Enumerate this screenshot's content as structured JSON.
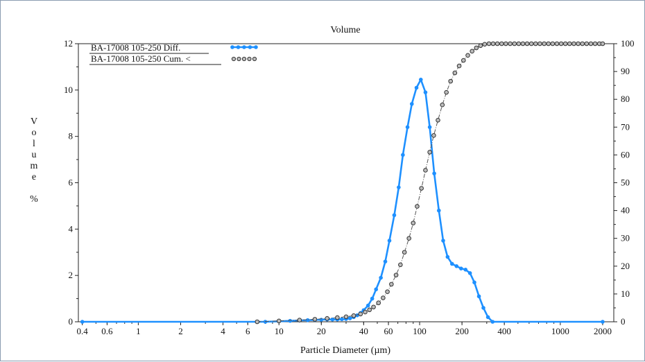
{
  "chart_data": {
    "type": "line",
    "title": "Volume",
    "xlabel": "Particle Diameter (µm)",
    "ylabel_left_chars": [
      "V",
      "o",
      "l",
      "u",
      "m",
      "e",
      "",
      "%"
    ],
    "x_scale": "log",
    "xlim": [
      0.375,
      2400
    ],
    "ylim_left": [
      0,
      12
    ],
    "ylim_right": [
      0,
      100
    ],
    "x_ticks": [
      0.4,
      0.6,
      1,
      2,
      4,
      6,
      10,
      20,
      40,
      60,
      100,
      200,
      400,
      1000,
      2000
    ],
    "x_tick_labels": [
      "0.4",
      "0.6",
      "1",
      "2",
      "4",
      "6",
      "10",
      "20",
      "40",
      "60",
      "100",
      "200",
      "400",
      "1000",
      "2000"
    ],
    "y_left_ticks": [
      0,
      2,
      4,
      6,
      8,
      10,
      12
    ],
    "y_left_tick_labels": [
      "0",
      "2",
      "4",
      "6",
      "8",
      "10",
      "12"
    ],
    "y_right_ticks": [
      0,
      10,
      20,
      30,
      40,
      50,
      60,
      70,
      80,
      90,
      100
    ],
    "y_right_tick_labels": [
      "0",
      "10",
      "20",
      "30",
      "40",
      "50",
      "60",
      "70",
      "80",
      "90",
      "100"
    ],
    "legend_position": "top-left",
    "series": [
      {
        "name": "BA-17008 105-250 Diff.",
        "axis": "left",
        "color": "#1e90ff",
        "style": "solid-filled-markers",
        "x": [
          0.4,
          8,
          10,
          12,
          14,
          16,
          18,
          20,
          22,
          24,
          26,
          28,
          30,
          32,
          34,
          36,
          38,
          40,
          43,
          46,
          49,
          53,
          57,
          61,
          66,
          71,
          76,
          82,
          88,
          95,
          102,
          110,
          118,
          127,
          137,
          147,
          158,
          170,
          183,
          197,
          212,
          228,
          245,
          264,
          284,
          306,
          330,
          2000
        ],
        "y": [
          0,
          0,
          0.02,
          0.04,
          0.06,
          0.07,
          0.08,
          0.09,
          0.1,
          0.1,
          0.1,
          0.11,
          0.12,
          0.15,
          0.2,
          0.28,
          0.38,
          0.5,
          0.7,
          1.0,
          1.4,
          1.9,
          2.6,
          3.5,
          4.6,
          5.8,
          7.2,
          8.4,
          9.4,
          10.1,
          10.45,
          9.9,
          8.4,
          6.4,
          4.8,
          3.5,
          2.8,
          2.5,
          2.4,
          2.3,
          2.25,
          2.1,
          1.7,
          1.1,
          0.6,
          0.2,
          0,
          0
        ]
      },
      {
        "name": "BA-17008 105-250 Cum. <",
        "axis": "right",
        "color": "#555555",
        "style": "dash-dot-open-markers",
        "x": [
          7,
          10,
          14,
          18,
          22,
          26,
          30,
          34,
          38,
          41,
          44,
          47,
          51,
          55,
          59,
          63,
          68,
          73,
          78,
          84,
          90,
          96,
          103,
          110,
          118,
          126,
          135,
          145,
          155,
          166,
          178,
          191,
          205,
          220,
          236,
          253,
          271,
          290,
          311,
          333,
          357,
          383,
          410,
          440,
          472,
          506,
          542,
          581,
          623,
          668,
          716,
          768,
          823,
          882,
          946,
          1014,
          1087,
          1165,
          1249,
          1339,
          1435,
          1538,
          1649,
          1768,
          1895,
          2000
        ],
        "y": [
          0,
          0.3,
          0.6,
          0.9,
          1.2,
          1.5,
          1.8,
          2.2,
          2.8,
          3.5,
          4.3,
          5.3,
          6.8,
          8.6,
          10.8,
          13.5,
          16.8,
          20.5,
          25,
          30,
          35.5,
          41.5,
          48,
          54.5,
          61,
          67,
          72.5,
          78,
          82.5,
          86.5,
          89.5,
          92,
          94,
          95.8,
          97.3,
          98.5,
          99.3,
          99.8,
          100,
          100,
          100,
          100,
          100,
          100,
          100,
          100,
          100,
          100,
          100,
          100,
          100,
          100,
          100,
          100,
          100,
          100,
          100,
          100,
          100,
          100,
          100,
          100,
          100,
          100,
          100,
          100
        ]
      }
    ]
  }
}
